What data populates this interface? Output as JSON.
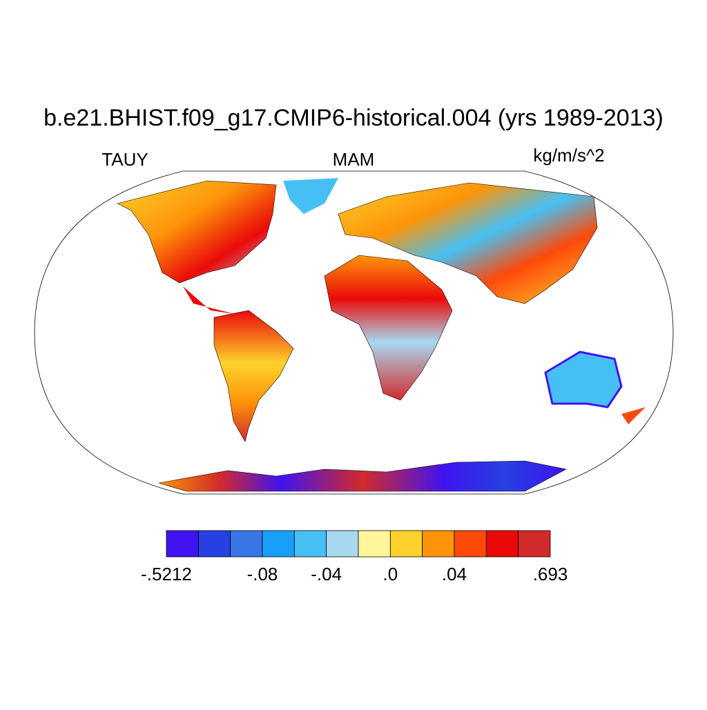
{
  "title": "b.e21.BHIST.f09_g17.CMIP6-historical.004 (yrs 1989-2013)",
  "left_label": "TAUY",
  "center_label": "MAM",
  "right_label": "kg/m/s^2",
  "colorbar": {
    "colors": [
      "#3f14f0",
      "#2640e2",
      "#3a76e6",
      "#18a0f8",
      "#46c0f4",
      "#a8d8f0",
      "#fff59a",
      "#fdd22c",
      "#fd9408",
      "#fd4a0a",
      "#ea0a0a",
      "#d22a2a"
    ],
    "ticks": [
      {
        "value": -0.5212,
        "label": "-.5212"
      },
      {
        "value": -0.08,
        "label": "-.08"
      },
      {
        "value": -0.04,
        "label": "-.04"
      },
      {
        "value": 0,
        "label": ".0"
      },
      {
        "value": 0.04,
        "label": ".04"
      },
      {
        "value": 0.693,
        "label": ".693"
      }
    ]
  }
}
